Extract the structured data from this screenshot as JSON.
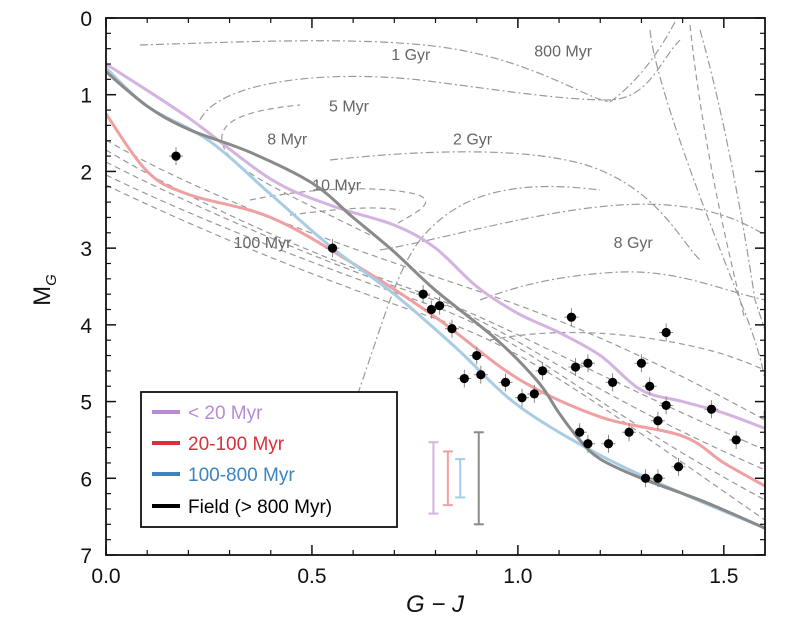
{
  "chart_data": {
    "type": "scatter",
    "title": "",
    "xlabel": "G − J",
    "ylabel": "M",
    "ylabel_subscript": "G",
    "xlim": [
      0.0,
      1.6
    ],
    "ylim": [
      7,
      0
    ],
    "xticks": [
      0.0,
      0.5,
      1.0,
      1.5
    ],
    "xtick_labels": [
      "0.0",
      "0.5",
      "1.0",
      "1.5"
    ],
    "yticks": [
      0,
      1,
      2,
      3,
      4,
      5,
      6,
      7
    ],
    "ytick_labels": [
      "0",
      "1",
      "2",
      "3",
      "4",
      "5",
      "6",
      "7"
    ],
    "legend_position": "bottom-left",
    "legend": [
      {
        "label": "< 20 Myr",
        "color": "#b98bd6"
      },
      {
        "label": "20-100 Myr",
        "color": "#d9303a"
      },
      {
        "label": "100-800 Myr",
        "color": "#3b84c2"
      },
      {
        "label": "Field (> 800 Myr)",
        "color": "#000000"
      }
    ],
    "series": [
      {
        "name": "< 20 Myr",
        "color": "#d5b3e0",
        "x": [
          0.0,
          0.2,
          0.4,
          0.55,
          0.7,
          0.8,
          0.9,
          1.0,
          1.1,
          1.2,
          1.3,
          1.4,
          1.5,
          1.6
        ],
        "y": [
          0.6,
          1.3,
          2.1,
          2.45,
          2.7,
          3.0,
          3.5,
          3.85,
          4.1,
          4.4,
          4.85,
          5.0,
          5.15,
          5.35
        ]
      },
      {
        "name": "20-100 Myr",
        "color": "#f0a0a0",
        "x": [
          0.0,
          0.1,
          0.2,
          0.4,
          0.6,
          0.8,
          1.0,
          1.2,
          1.4,
          1.5,
          1.6
        ],
        "y": [
          1.25,
          2.0,
          2.3,
          2.6,
          3.2,
          3.9,
          4.7,
          5.2,
          5.45,
          5.8,
          6.1
        ]
      },
      {
        "name": "100-800 Myr",
        "color": "#a8cce4",
        "x": [
          0.0,
          0.1,
          0.25,
          0.4,
          0.55,
          0.7,
          0.85,
          1.0,
          1.2,
          1.4,
          1.6
        ],
        "y": [
          0.65,
          1.15,
          1.6,
          2.3,
          3.0,
          3.6,
          4.3,
          5.05,
          5.7,
          6.2,
          6.65
        ]
      },
      {
        "name": "Field (> 800 Myr)",
        "color": "#8a8a8a",
        "x": [
          0.0,
          0.1,
          0.2,
          0.35,
          0.5,
          0.6,
          0.7,
          0.8,
          0.95,
          1.05,
          1.1,
          1.15,
          1.2,
          1.3,
          1.45,
          1.6
        ],
        "y": [
          0.7,
          1.15,
          1.45,
          1.75,
          2.15,
          2.6,
          3.05,
          3.55,
          4.2,
          4.75,
          5.15,
          5.5,
          5.75,
          6.0,
          6.3,
          6.65
        ]
      }
    ],
    "error_bars": [
      {
        "series": "< 20 Myr",
        "x": 0.795,
        "y_low": 5.53,
        "y_high": 6.46,
        "color": "#d5b3e0"
      },
      {
        "series": "20-100 Myr",
        "x": 0.83,
        "y_low": 5.65,
        "y_high": 6.35,
        "color": "#f0a0a0"
      },
      {
        "series": "100-800 Myr",
        "x": 0.86,
        "y_low": 5.75,
        "y_high": 6.25,
        "color": "#a8cce4"
      },
      {
        "series": "Field (> 800 Myr)",
        "x": 0.905,
        "y_low": 5.4,
        "y_high": 6.6,
        "color": "#8a8a8a"
      }
    ],
    "points": {
      "name": "Observed stars",
      "color": "#000000",
      "x": [
        0.17,
        0.55,
        0.77,
        0.79,
        0.81,
        0.84,
        0.87,
        0.9,
        0.91,
        0.97,
        1.01,
        1.04,
        1.06,
        1.13,
        1.14,
        1.15,
        1.17,
        1.17,
        1.22,
        1.23,
        1.27,
        1.3,
        1.31,
        1.32,
        1.34,
        1.34,
        1.36,
        1.36,
        1.39,
        1.47,
        1.53
      ],
      "y": [
        1.8,
        3.0,
        3.6,
        3.8,
        3.75,
        4.05,
        4.7,
        4.4,
        4.65,
        4.75,
        4.95,
        4.9,
        4.6,
        3.9,
        4.55,
        5.4,
        4.5,
        5.55,
        5.55,
        4.75,
        5.4,
        4.5,
        6.0,
        4.8,
        5.25,
        6.0,
        4.1,
        5.05,
        5.85,
        5.1,
        5.5
      ]
    },
    "isochrones": [
      {
        "label": "1 Gyr",
        "label_x": 0.74,
        "label_y": 0.55
      },
      {
        "label": "800 Myr",
        "label_x": 1.11,
        "label_y": 0.5
      },
      {
        "label": "5 Myr",
        "label_x": 0.59,
        "label_y": 1.22
      },
      {
        "label": "8 Myr",
        "label_x": 0.44,
        "label_y": 1.65
      },
      {
        "label": "2 Gyr",
        "label_x": 0.89,
        "label_y": 1.65
      },
      {
        "label": "10 Myr",
        "label_x": 0.56,
        "label_y": 2.25
      },
      {
        "label": "100 Myr",
        "label_x": 0.38,
        "label_y": 3.0
      },
      {
        "label": "8 Gyr",
        "label_x": 1.28,
        "label_y": 3.0
      }
    ]
  }
}
